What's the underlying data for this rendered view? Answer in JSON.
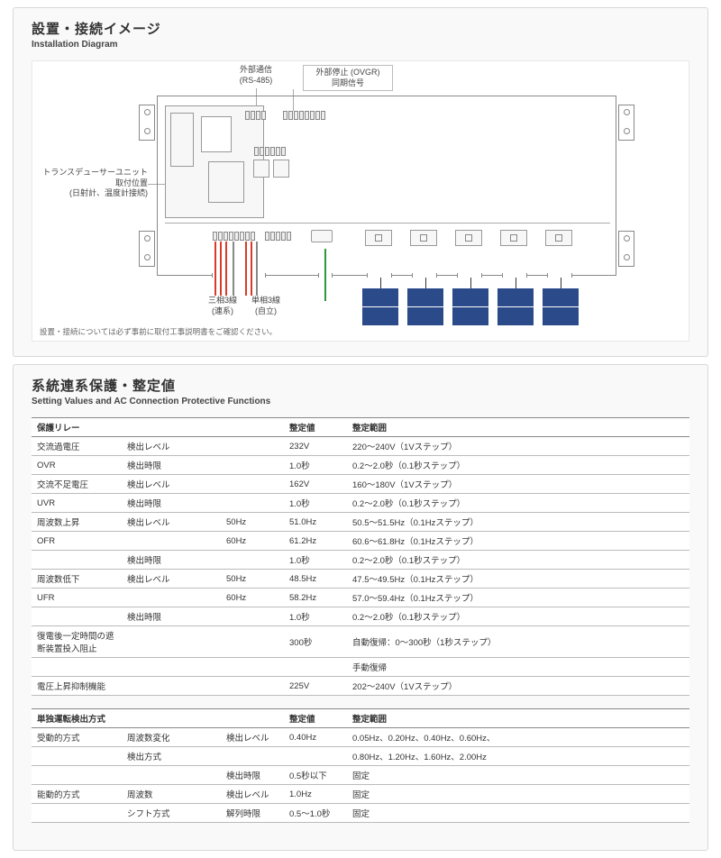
{
  "panel1": {
    "title_jp": "設置・接続イメージ",
    "title_en": "Installation Diagram",
    "callouts": {
      "ext_comm": {
        "l1": "外部通信",
        "l2": "(RS-485)"
      },
      "ext_stop": {
        "l1": "外部停止 (OVGR)",
        "l2": "同期信号"
      },
      "transducer": {
        "l1": "トランスデューサーユニット",
        "l2": "取付位置",
        "l3": "(日射計、温度計接続)"
      }
    },
    "wire_labels": {
      "three_phase": {
        "l1": "三相3線",
        "l2": "(連系)"
      },
      "single_phase": {
        "l1": "単相3線",
        "l2": "(自立)"
      }
    },
    "footnote": "設置・接続については必ず事前に取付工事説明書をご確認ください。",
    "colors": {
      "red": "#d93a2a",
      "green": "#2a9a3a",
      "enclosure": "#888888"
    }
  },
  "panel2": {
    "title_jp": "系統連系保護・整定値",
    "title_en": "Setting Values and AC Connection Protective Functions",
    "table1": {
      "headers": [
        "保護リレー",
        "",
        "",
        "整定値",
        "整定範囲"
      ],
      "rows": [
        [
          "交流過電圧",
          "検出レベル",
          "",
          "232V",
          "220～240V（1Vステップ）"
        ],
        [
          "OVR",
          "検出時限",
          "",
          "1.0秒",
          "0.2～2.0秒（0.1秒ステップ）"
        ],
        [
          "交流不足電圧",
          "検出レベル",
          "",
          "162V",
          "160～180V（1Vステップ）"
        ],
        [
          "UVR",
          "検出時限",
          "",
          "1.0秒",
          "0.2～2.0秒（0.1秒ステップ）"
        ],
        [
          "周波数上昇",
          "検出レベル",
          "50Hz",
          "51.0Hz",
          "50.5～51.5Hz（0.1Hzステップ）"
        ],
        [
          "OFR",
          "",
          "60Hz",
          "61.2Hz",
          "60.6～61.8Hz（0.1Hzステップ）"
        ],
        [
          "",
          "検出時限",
          "",
          "1.0秒",
          "0.2～2.0秒（0.1秒ステップ）"
        ],
        [
          "周波数低下",
          "検出レベル",
          "50Hz",
          "48.5Hz",
          "47.5～49.5Hz（0.1Hzステップ）"
        ],
        [
          "UFR",
          "",
          "60Hz",
          "58.2Hz",
          "57.0～59.4Hz（0.1Hzステップ）"
        ],
        [
          "",
          "検出時限",
          "",
          "1.0秒",
          "0.2～2.0秒（0.1秒ステップ）"
        ],
        [
          "復電後一定時間の遮断装置投入阻止",
          "",
          "",
          "300秒",
          "自動復帰：0～300秒（1秒ステップ）"
        ],
        [
          "",
          "",
          "",
          "",
          "手動復帰"
        ],
        [
          "電圧上昇抑制機能",
          "",
          "",
          "225V",
          "202～240V（1Vステップ）"
        ]
      ]
    },
    "table2": {
      "headers": [
        "単独運転検出方式",
        "",
        "",
        "整定値",
        "整定範囲"
      ],
      "rows": [
        [
          "受動的方式",
          "周波数変化",
          "検出レベル",
          "0.40Hz",
          "0.05Hz、0.20Hz、0.40Hz、0.60Hz、"
        ],
        [
          "",
          "検出方式",
          "",
          "",
          "0.80Hz、1.20Hz、1.60Hz、2.00Hz"
        ],
        [
          "",
          "",
          "検出時限",
          "0.5秒以下",
          "固定"
        ],
        [
          "能動的方式",
          "周波数",
          "検出レベル",
          "1.0Hz",
          "固定"
        ],
        [
          "",
          "シフト方式",
          "解列時限",
          "0.5～1.0秒",
          "固定"
        ]
      ]
    }
  }
}
